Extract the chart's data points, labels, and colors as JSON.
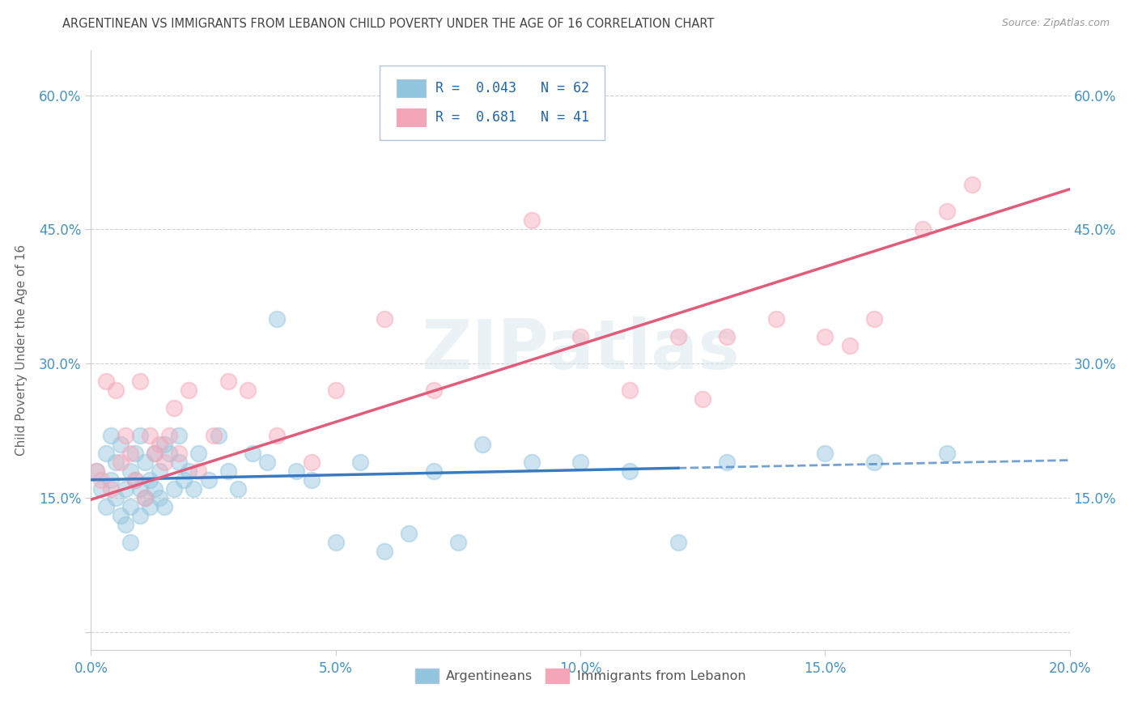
{
  "title": "ARGENTINEAN VS IMMIGRANTS FROM LEBANON CHILD POVERTY UNDER THE AGE OF 16 CORRELATION CHART",
  "source": "Source: ZipAtlas.com",
  "ylabel": "Child Poverty Under the Age of 16",
  "xlim": [
    0.0,
    0.2
  ],
  "ylim": [
    -0.02,
    0.65
  ],
  "x_ticks": [
    0.0,
    0.05,
    0.1,
    0.15,
    0.2
  ],
  "x_tick_labels": [
    "0.0%",
    "5.0%",
    "10.0%",
    "15.0%",
    "20.0%"
  ],
  "y_ticks": [
    0.0,
    0.15,
    0.3,
    0.45,
    0.6
  ],
  "y_tick_labels": [
    "",
    "15.0%",
    "30.0%",
    "45.0%",
    "60.0%"
  ],
  "legend_line1": "R =  0.043   N = 62",
  "legend_line2": "R =  0.681   N = 41",
  "blue_color": "#92c5de",
  "pink_color": "#f4a6b8",
  "blue_line_color": "#3a7abf",
  "pink_line_color": "#e05c7a",
  "tick_color": "#4393c3",
  "watermark": "ZIPatlas",
  "blue_scatter_x": [
    0.001,
    0.002,
    0.003,
    0.003,
    0.004,
    0.004,
    0.005,
    0.005,
    0.006,
    0.006,
    0.007,
    0.007,
    0.008,
    0.008,
    0.008,
    0.009,
    0.009,
    0.01,
    0.01,
    0.01,
    0.011,
    0.011,
    0.012,
    0.012,
    0.013,
    0.013,
    0.014,
    0.014,
    0.015,
    0.015,
    0.016,
    0.017,
    0.018,
    0.018,
    0.019,
    0.02,
    0.021,
    0.022,
    0.024,
    0.026,
    0.028,
    0.03,
    0.033,
    0.036,
    0.038,
    0.042,
    0.045,
    0.05,
    0.055,
    0.06,
    0.065,
    0.07,
    0.075,
    0.08,
    0.09,
    0.1,
    0.11,
    0.12,
    0.13,
    0.15,
    0.16,
    0.175
  ],
  "blue_scatter_y": [
    0.18,
    0.16,
    0.2,
    0.14,
    0.17,
    0.22,
    0.15,
    0.19,
    0.13,
    0.21,
    0.12,
    0.16,
    0.14,
    0.18,
    0.1,
    0.17,
    0.2,
    0.16,
    0.13,
    0.22,
    0.15,
    0.19,
    0.14,
    0.17,
    0.16,
    0.2,
    0.15,
    0.18,
    0.14,
    0.21,
    0.2,
    0.16,
    0.19,
    0.22,
    0.17,
    0.18,
    0.16,
    0.2,
    0.17,
    0.22,
    0.18,
    0.16,
    0.2,
    0.19,
    0.35,
    0.18,
    0.17,
    0.1,
    0.19,
    0.09,
    0.11,
    0.18,
    0.1,
    0.21,
    0.19,
    0.19,
    0.18,
    0.1,
    0.19,
    0.2,
    0.19,
    0.2
  ],
  "pink_scatter_x": [
    0.001,
    0.002,
    0.003,
    0.004,
    0.005,
    0.006,
    0.007,
    0.008,
    0.009,
    0.01,
    0.011,
    0.012,
    0.013,
    0.014,
    0.015,
    0.016,
    0.017,
    0.018,
    0.02,
    0.022,
    0.025,
    0.028,
    0.032,
    0.038,
    0.045,
    0.05,
    0.06,
    0.07,
    0.09,
    0.1,
    0.11,
    0.12,
    0.125,
    0.13,
    0.14,
    0.15,
    0.155,
    0.16,
    0.17,
    0.175,
    0.18
  ],
  "pink_scatter_y": [
    0.18,
    0.17,
    0.28,
    0.16,
    0.27,
    0.19,
    0.22,
    0.2,
    0.17,
    0.28,
    0.15,
    0.22,
    0.2,
    0.21,
    0.19,
    0.22,
    0.25,
    0.2,
    0.27,
    0.18,
    0.22,
    0.28,
    0.27,
    0.22,
    0.19,
    0.27,
    0.35,
    0.27,
    0.46,
    0.33,
    0.27,
    0.33,
    0.26,
    0.33,
    0.35,
    0.33,
    0.32,
    0.35,
    0.45,
    0.47,
    0.5
  ],
  "blue_line_x": [
    0.0,
    0.2
  ],
  "blue_line_y": [
    0.17,
    0.192
  ],
  "blue_line_solid_end": 0.12,
  "pink_line_x": [
    0.0,
    0.2
  ],
  "pink_line_y": [
    0.148,
    0.495
  ]
}
